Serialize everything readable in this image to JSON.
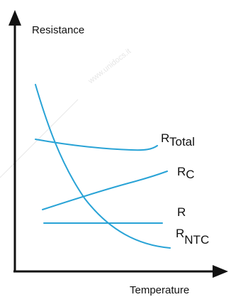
{
  "watermark": "www.unidocs.it",
  "chart_data": {
    "type": "line",
    "title": "",
    "xlabel": "Temperature",
    "ylabel": "Resistance",
    "grid": false,
    "axis_ticks": false,
    "series": [
      {
        "name": "R",
        "sub": "Total",
        "color": "#29a3d6"
      },
      {
        "name": "R",
        "sub": "C",
        "color": "#29a3d6"
      },
      {
        "name": "R",
        "sub": "",
        "color": "#29a3d6"
      },
      {
        "name": "R",
        "sub": "NTC",
        "color": "#29a3d6"
      }
    ]
  }
}
